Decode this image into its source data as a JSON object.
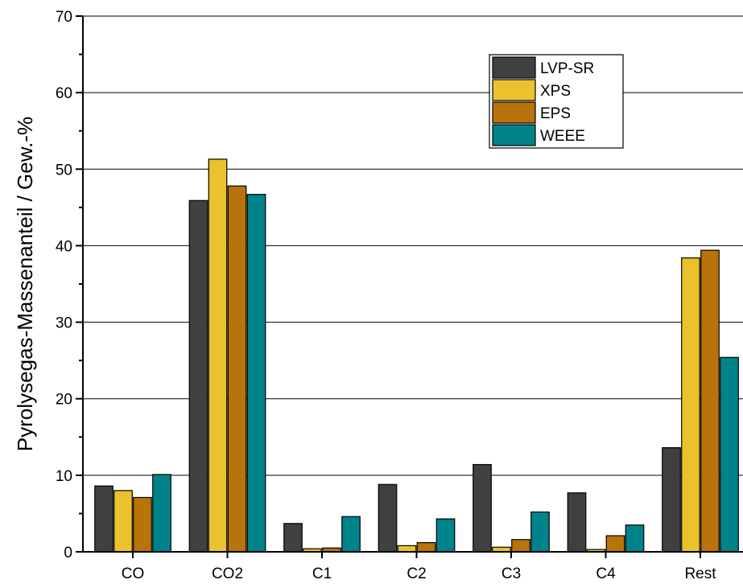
{
  "chart_data": {
    "type": "bar",
    "title": "",
    "xlabel": "",
    "ylabel": "Pyrolysegas-Massenanteil / Gew.-%",
    "ylim": [
      0,
      70
    ],
    "yticks": [
      0,
      10,
      20,
      30,
      40,
      50,
      60,
      70
    ],
    "grid": "horizontal",
    "legend_position": "top-right",
    "categories": [
      "CO",
      "CO2",
      "C1",
      "C2",
      "C3",
      "C4",
      "Rest"
    ],
    "series": [
      {
        "name": "LVP-SR",
        "color": "#404040",
        "values": [
          8.6,
          45.9,
          3.7,
          8.8,
          11.4,
          7.7,
          13.6
        ]
      },
      {
        "name": "XPS",
        "color": "#ebc22d",
        "values": [
          8.0,
          51.3,
          0.4,
          0.8,
          0.6,
          0.3,
          38.4
        ]
      },
      {
        "name": "EPS",
        "color": "#b8730a",
        "values": [
          7.1,
          47.8,
          0.5,
          1.2,
          1.6,
          2.1,
          39.4
        ]
      },
      {
        "name": "WEEE",
        "color": "#00838a",
        "values": [
          10.1,
          46.7,
          4.6,
          4.3,
          5.2,
          3.5,
          25.4
        ]
      }
    ]
  }
}
